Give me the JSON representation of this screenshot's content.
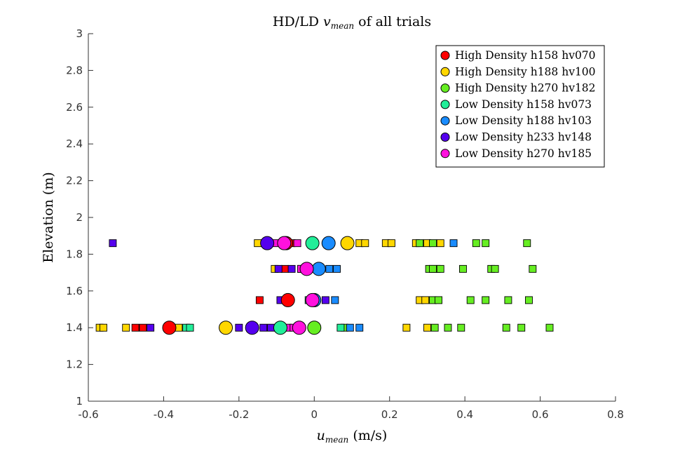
{
  "chart_data": {
    "type": "scatter",
    "title": {
      "prefix": "HD/LD ",
      "var": "v",
      "sub": "mean",
      "suffix": " of all trials"
    },
    "xlabel": {
      "var": "u",
      "sub": "mean",
      "suffix": " (m/s)"
    },
    "ylabel": "Elevation (m)",
    "xlim": [
      -0.6,
      0.8
    ],
    "ylim": [
      1,
      3
    ],
    "xticks": [
      "-0.6",
      "-0.4",
      "-0.2",
      "0",
      "0.2",
      "0.4",
      "0.6",
      "0.8"
    ],
    "yticks": [
      "1",
      "1.2",
      "1.4",
      "1.6",
      "1.8",
      "2",
      "2.2",
      "2.4",
      "2.6",
      "2.8",
      "3"
    ],
    "grid": false,
    "legend_position": "top-right",
    "series": [
      {
        "name": "High Density h158 hv070",
        "color": "#ff0000",
        "means": [
          {
            "x": -0.385,
            "y": 1.4
          },
          {
            "x": -0.07,
            "y": 1.55
          },
          {
            "x": -0.075,
            "y": 1.86
          }
        ],
        "trials": [
          {
            "x": -0.475,
            "y": 1.4
          },
          {
            "x": -0.455,
            "y": 1.4
          },
          {
            "x": -0.145,
            "y": 1.55
          },
          {
            "x": -0.078,
            "y": 1.72
          },
          {
            "x": -0.06,
            "y": 1.86
          }
        ]
      },
      {
        "name": "High Density h188 hv100",
        "color": "#ffd700",
        "means": [
          {
            "x": -0.235,
            "y": 1.4
          },
          {
            "x": 0.088,
            "y": 1.86
          }
        ],
        "trials": [
          {
            "x": -0.57,
            "y": 1.4
          },
          {
            "x": -0.56,
            "y": 1.4
          },
          {
            "x": -0.5,
            "y": 1.4
          },
          {
            "x": -0.36,
            "y": 1.4
          },
          {
            "x": 0.245,
            "y": 1.4
          },
          {
            "x": 0.3,
            "y": 1.4
          },
          {
            "x": 0.28,
            "y": 1.55
          },
          {
            "x": 0.295,
            "y": 1.55
          },
          {
            "x": 0.325,
            "y": 1.72
          },
          {
            "x": -0.105,
            "y": 1.72
          },
          {
            "x": -0.15,
            "y": 1.86
          },
          {
            "x": 0.12,
            "y": 1.86
          },
          {
            "x": 0.135,
            "y": 1.86
          },
          {
            "x": 0.19,
            "y": 1.86
          },
          {
            "x": 0.205,
            "y": 1.86
          },
          {
            "x": 0.27,
            "y": 1.86
          },
          {
            "x": 0.3,
            "y": 1.86
          },
          {
            "x": 0.335,
            "y": 1.86
          }
        ]
      },
      {
        "name": "High Density h270 hv182",
        "color": "#66ee22",
        "means": [
          {
            "x": 0.0,
            "y": 1.4
          }
        ],
        "trials": [
          {
            "x": 0.08,
            "y": 1.4
          },
          {
            "x": 0.32,
            "y": 1.4
          },
          {
            "x": 0.355,
            "y": 1.4
          },
          {
            "x": 0.39,
            "y": 1.4
          },
          {
            "x": 0.51,
            "y": 1.4
          },
          {
            "x": 0.55,
            "y": 1.4
          },
          {
            "x": 0.625,
            "y": 1.4
          },
          {
            "x": 0.315,
            "y": 1.55
          },
          {
            "x": 0.33,
            "y": 1.55
          },
          {
            "x": 0.415,
            "y": 1.55
          },
          {
            "x": 0.455,
            "y": 1.55
          },
          {
            "x": 0.515,
            "y": 1.55
          },
          {
            "x": 0.57,
            "y": 1.55
          },
          {
            "x": 0.305,
            "y": 1.72
          },
          {
            "x": 0.315,
            "y": 1.72
          },
          {
            "x": 0.335,
            "y": 1.72
          },
          {
            "x": 0.395,
            "y": 1.72
          },
          {
            "x": 0.47,
            "y": 1.72
          },
          {
            "x": 0.48,
            "y": 1.72
          },
          {
            "x": 0.58,
            "y": 1.72
          },
          {
            "x": 0.28,
            "y": 1.86
          },
          {
            "x": 0.315,
            "y": 1.86
          },
          {
            "x": 0.43,
            "y": 1.86
          },
          {
            "x": 0.455,
            "y": 1.86
          },
          {
            "x": 0.565,
            "y": 1.86
          }
        ]
      },
      {
        "name": "Low Density h158 hv073",
        "color": "#22ee99",
        "means": [
          {
            "x": -0.09,
            "y": 1.4
          },
          {
            "x": -0.005,
            "y": 1.86
          }
        ],
        "trials": [
          {
            "x": -0.34,
            "y": 1.4
          },
          {
            "x": -0.33,
            "y": 1.4
          },
          {
            "x": 0.07,
            "y": 1.4
          },
          {
            "x": -0.015,
            "y": 1.55
          }
        ]
      },
      {
        "name": "Low Density h188 hv103",
        "color": "#1a8cff",
        "means": [
          {
            "x": 0.0,
            "y": 1.55
          },
          {
            "x": 0.012,
            "y": 1.72
          },
          {
            "x": 0.038,
            "y": 1.86
          }
        ],
        "trials": [
          {
            "x": 0.095,
            "y": 1.4
          },
          {
            "x": 0.12,
            "y": 1.4
          },
          {
            "x": 0.055,
            "y": 1.55
          },
          {
            "x": 0.04,
            "y": 1.72
          },
          {
            "x": 0.06,
            "y": 1.72
          },
          {
            "x": 0.37,
            "y": 1.86
          }
        ]
      },
      {
        "name": "Low Density h233 hv148",
        "color": "#5500ee",
        "means": [
          {
            "x": -0.165,
            "y": 1.4
          },
          {
            "x": -0.125,
            "y": 1.86
          }
        ],
        "trials": [
          {
            "x": -0.535,
            "y": 1.86
          },
          {
            "x": -0.435,
            "y": 1.4
          },
          {
            "x": -0.2,
            "y": 1.4
          },
          {
            "x": -0.135,
            "y": 1.4
          },
          {
            "x": -0.115,
            "y": 1.4
          },
          {
            "x": -0.09,
            "y": 1.55
          },
          {
            "x": -0.095,
            "y": 1.72
          },
          {
            "x": -0.06,
            "y": 1.72
          },
          {
            "x": -0.035,
            "y": 1.72
          },
          {
            "x": 0.03,
            "y": 1.55
          }
        ]
      },
      {
        "name": "Low Density h270 hv185",
        "color": "#ff11dd",
        "means": [
          {
            "x": -0.04,
            "y": 1.4
          },
          {
            "x": -0.005,
            "y": 1.55
          },
          {
            "x": -0.02,
            "y": 1.72
          },
          {
            "x": -0.08,
            "y": 1.86
          }
        ],
        "trials": [
          {
            "x": -0.07,
            "y": 1.4
          },
          {
            "x": -0.055,
            "y": 1.4
          },
          {
            "x": -0.1,
            "y": 1.86
          },
          {
            "x": -0.045,
            "y": 1.86
          },
          {
            "x": -0.035,
            "y": 1.72
          }
        ]
      }
    ]
  }
}
